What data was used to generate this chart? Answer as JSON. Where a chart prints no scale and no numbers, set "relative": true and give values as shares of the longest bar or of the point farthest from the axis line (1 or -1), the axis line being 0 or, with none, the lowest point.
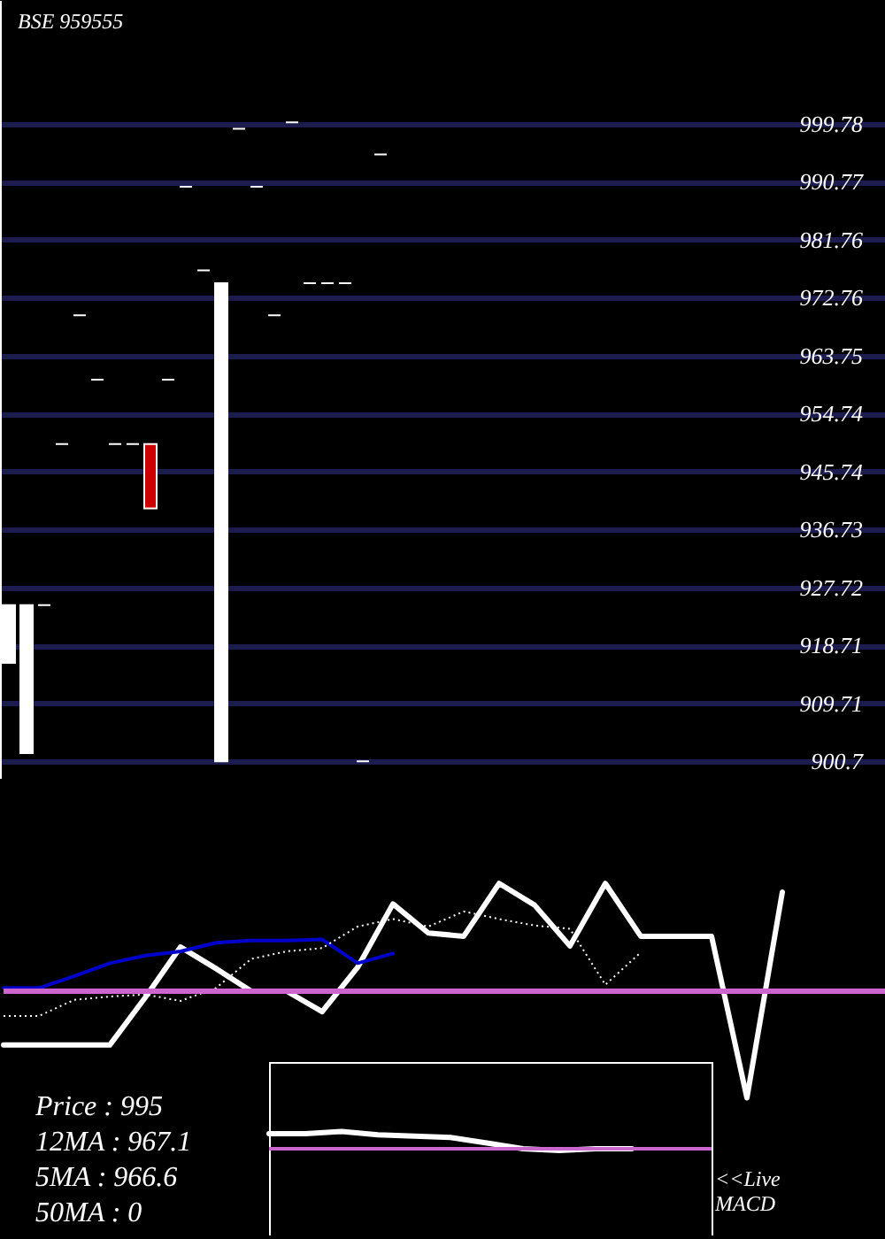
{
  "chart_data": [
    {
      "type": "candlestick",
      "title": "BSE 959555",
      "categories": [
        null,
        null,
        null,
        null,
        null,
        null,
        null,
        null,
        null,
        null,
        null,
        null,
        null,
        null,
        null,
        null,
        null,
        null,
        null,
        null,
        null,
        null,
        null,
        null,
        null,
        null,
        null,
        null,
        null,
        null,
        null,
        null,
        null,
        null,
        null,
        null,
        null,
        null,
        null,
        null,
        null,
        null,
        null,
        null,
        null,
        null,
        null,
        null,
        null,
        null
      ],
      "ohlc": [
        [
          916,
          925,
          916,
          925
        ],
        [
          902,
          925,
          902,
          925
        ],
        [
          925,
          925,
          925,
          925
        ],
        [
          950,
          950,
          950,
          950
        ],
        [
          970,
          970,
          970,
          970
        ],
        [
          960,
          960,
          960,
          960
        ],
        [
          950,
          950,
          950,
          950
        ],
        [
          950,
          950,
          950,
          950
        ],
        [
          950,
          950,
          940,
          940
        ],
        [
          960,
          960,
          960,
          960
        ],
        [
          990,
          990,
          990,
          990
        ],
        [
          977,
          977,
          977,
          977
        ],
        [
          900.7,
          975,
          900.7,
          975
        ],
        [
          999,
          999,
          999,
          999
        ],
        [
          990,
          990,
          990,
          990
        ],
        [
          970,
          970,
          970,
          970
        ],
        [
          1000,
          1000,
          1000,
          1000
        ],
        [
          975,
          975,
          975,
          975
        ],
        [
          975,
          975,
          975,
          975
        ],
        [
          975,
          975,
          975,
          975
        ],
        [
          900.7,
          900.7,
          900.7,
          900.7
        ],
        [
          995,
          995,
          995,
          995
        ],
        null,
        null,
        null,
        null,
        null,
        null,
        null,
        null,
        null,
        null,
        null,
        null,
        null,
        null,
        null,
        null,
        null,
        null,
        null,
        null,
        null,
        null,
        null,
        null,
        null,
        null,
        null,
        null
      ],
      "colors": [
        "#ffffff",
        "#ffffff",
        "#ffffff",
        "#ffffff",
        "#ffffff",
        "#ffffff",
        "#ffffff",
        "#ffffff",
        "#cc0000",
        "#ffffff",
        "#ffffff",
        "#ffffff",
        "#ffffff",
        "#ffffff",
        "#ffffff",
        "#ffffff",
        "#ffffff",
        "#ffffff",
        "#ffffff",
        "#ffffff",
        "#ffffff",
        "#ffffff",
        null,
        null,
        null,
        null,
        null,
        null,
        null,
        null,
        null,
        null,
        null,
        null,
        null,
        null,
        null,
        null,
        null,
        null,
        null,
        null,
        null,
        null,
        null,
        null,
        null,
        null,
        null,
        null
      ],
      "ylim": [
        898,
        1019
      ],
      "yticks": [
        900.7,
        909.71,
        918.71,
        927.72,
        936.73,
        945.74,
        954.74,
        963.75,
        972.76,
        981.76,
        990.77,
        999.78
      ],
      "grid": "y",
      "tick_labels": "y"
    },
    {
      "type": "line",
      "relative": true,
      "tick_labels": false,
      "categories": [
        null,
        null,
        null,
        null,
        null,
        null,
        null,
        null,
        null,
        null,
        null,
        null,
        null,
        null,
        null,
        null,
        null,
        null,
        null,
        null,
        null,
        null,
        null
      ],
      "series": [
        {
          "color": "#ffffff",
          "values": [
            -0.5,
            -0.5,
            -0.5,
            -0.5,
            -0.06,
            0.41,
            0.21,
            0,
            0,
            -0.19,
            0.22,
            0.81,
            0.54,
            0.51,
            1,
            0.8,
            0.42,
            1,
            0.51,
            0.51,
            0.51,
            -0.99,
            0.92
          ]
        },
        {
          "color": "#0000cc",
          "values": [
            0.03,
            0.03,
            0.14,
            0.26,
            0.33,
            0.37,
            0.45,
            0.47,
            0.47,
            0.48,
            0.26,
            0.35,
            null,
            null,
            null,
            null,
            null,
            null,
            null,
            null,
            null,
            null,
            null
          ]
        },
        {
          "color": "#ffffff",
          "line_style": "dotted",
          "values": [
            -0.23,
            -0.23,
            -0.08,
            -0.05,
            -0.03,
            -0.09,
            0.03,
            0.3,
            0.37,
            0.4,
            0.6,
            0.67,
            0.6,
            0.74,
            0.67,
            0.61,
            0.58,
            0.06,
            0.36,
            null,
            null,
            null,
            null
          ]
        }
      ],
      "ref_lines": [
        {
          "axis": "y",
          "value": 0,
          "color": "#cc66cc"
        }
      ]
    },
    {
      "type": "line",
      "relative": true,
      "tick_labels": false,
      "categories": [
        null,
        null,
        null,
        null,
        null,
        null,
        null,
        null,
        null,
        null,
        null
      ],
      "series": [
        {
          "color": "#ffffff",
          "values": [
            0.87,
            0.87,
            1,
            0.8,
            0.73,
            0.65,
            0.33,
            0,
            -0.1,
            0,
            0
          ]
        }
      ],
      "ref_lines": [
        {
          "axis": "y",
          "value": 0,
          "color": "#cc66cc"
        }
      ],
      "annotations": [
        "<<Live MACD"
      ]
    },
    {
      "type": "other",
      "annotations": [
        "Price : 995",
        "12MA : 967.1",
        "5MA : 966.6",
        "50MA : 0"
      ]
    }
  ]
}
